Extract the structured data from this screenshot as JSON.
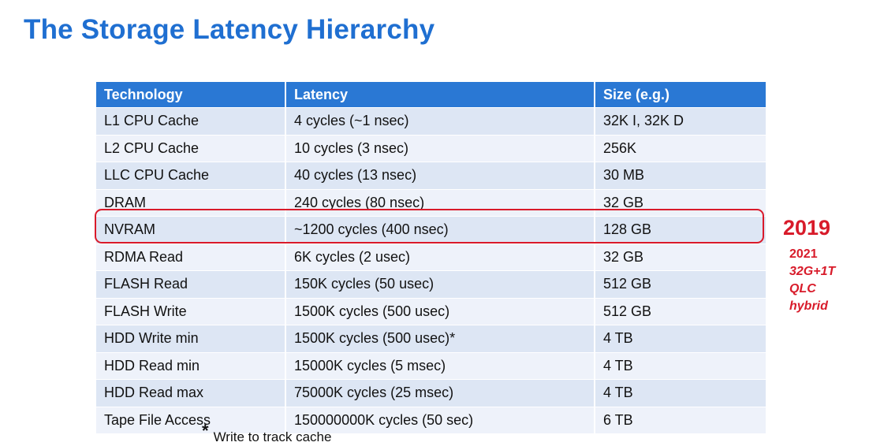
{
  "title": "The Storage Latency Hierarchy",
  "table": {
    "headers": [
      "Technology",
      "Latency",
      "Size (e.g.)"
    ],
    "rows": [
      [
        "L1 CPU Cache",
        "4 cycles (~1 nsec)",
        "32K I, 32K D"
      ],
      [
        "L2 CPU Cache",
        "10 cycles (3 nsec)",
        "256K"
      ],
      [
        "LLC CPU Cache",
        "40 cycles (13 nsec)",
        "30 MB"
      ],
      [
        "DRAM",
        "240 cycles (80 nsec)",
        "32 GB"
      ],
      [
        "NVRAM",
        "~1200 cycles (400 nsec)",
        "128 GB"
      ],
      [
        "RDMA Read",
        "6K cycles (2 usec)",
        "32 GB"
      ],
      [
        "FLASH Read",
        "150K cycles (50 usec)",
        "512 GB"
      ],
      [
        "FLASH Write",
        "1500K cycles (500 usec)",
        "512 GB"
      ],
      [
        "HDD Write min",
        "1500K cycles (500 usec)*",
        "4 TB"
      ],
      [
        "HDD Read min",
        "15000K cycles (5 msec)",
        "4 TB"
      ],
      [
        "HDD Read max",
        "75000K cycles (25 msec)",
        "4 TB"
      ],
      [
        "Tape File Access",
        "150000000K cycles (50 sec)",
        "6 TB"
      ]
    ]
  },
  "annotation": {
    "year": "2019",
    "year2": "2021",
    "line2": "32G+1T",
    "line3": "QLC",
    "line4": "hybrid"
  },
  "footnote": {
    "marker": "*",
    "text": "Write to track cache"
  },
  "colors": {
    "title": "#1f6fd1",
    "header_bg": "#2a78d4",
    "row_odd": "#dde6f4",
    "row_even": "#eef2fa",
    "highlight": "#d91a2a"
  }
}
